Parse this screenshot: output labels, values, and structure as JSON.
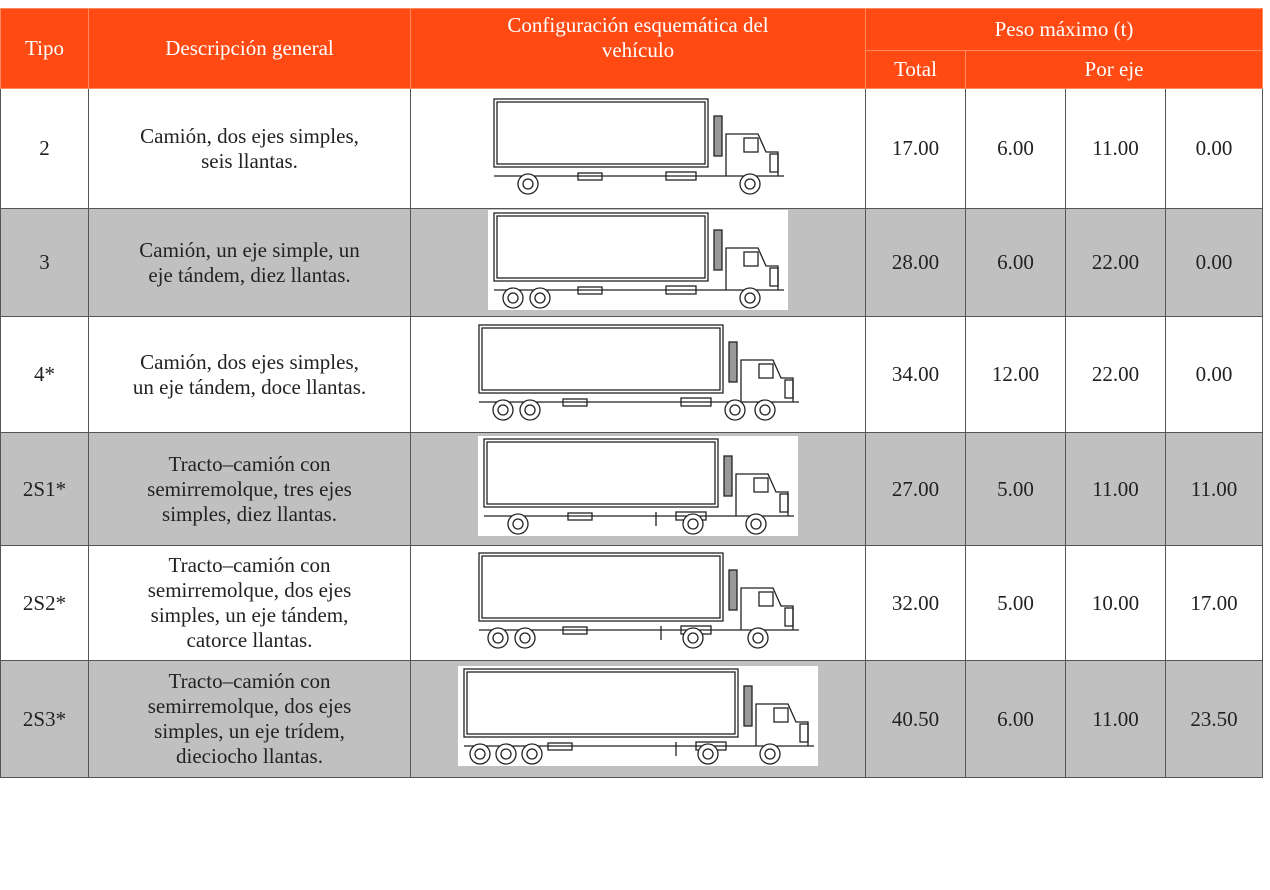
{
  "header": {
    "tipo": "Tipo",
    "descripcion": "Descripción general",
    "configuracion": "Configuración esquemática del vehículo",
    "peso": "Peso máximo (t)",
    "total": "Total",
    "por_eje": "Por eje"
  },
  "rows": [
    {
      "tipo": "2",
      "descripcion": [
        "Camión, dos ejes simples,",
        "seis llantas."
      ],
      "total": "17.00",
      "ejes": [
        "6.00",
        "11.00",
        "0.00"
      ]
    },
    {
      "tipo": "3",
      "descripcion": [
        "Camión, un eje simple, un",
        "eje tándem, diez llantas."
      ],
      "total": "28.00",
      "ejes": [
        "6.00",
        "22.00",
        "0.00"
      ]
    },
    {
      "tipo": "4*",
      "descripcion": [
        "Camión, dos ejes simples,",
        "un eje tándem, doce llantas."
      ],
      "total": "34.00",
      "ejes": [
        "12.00",
        "22.00",
        "0.00"
      ]
    },
    {
      "tipo": "2S1*",
      "descripcion": [
        "Tracto–camión  con",
        "semirremolque, tres ejes",
        "simples, diez llantas."
      ],
      "total": "27.00",
      "ejes": [
        "5.00",
        "11.00",
        "11.00"
      ]
    },
    {
      "tipo": "2S2*",
      "descripcion": [
        "Tracto–camión con",
        "semirremolque, dos ejes",
        "simples, un eje tándem,",
        "catorce llantas."
      ],
      "total": "32.00",
      "ejes": [
        "5.00",
        "10.00",
        "17.00"
      ]
    },
    {
      "tipo": "2S3*",
      "descripcion": [
        "Tracto–camión con",
        "semirremolque, dos ejes",
        "simples, un eje trídem,",
        "dieciocho llantas."
      ],
      "total": "40.50",
      "ejes": [
        "6.00",
        "11.00",
        "23.50"
      ]
    }
  ]
}
